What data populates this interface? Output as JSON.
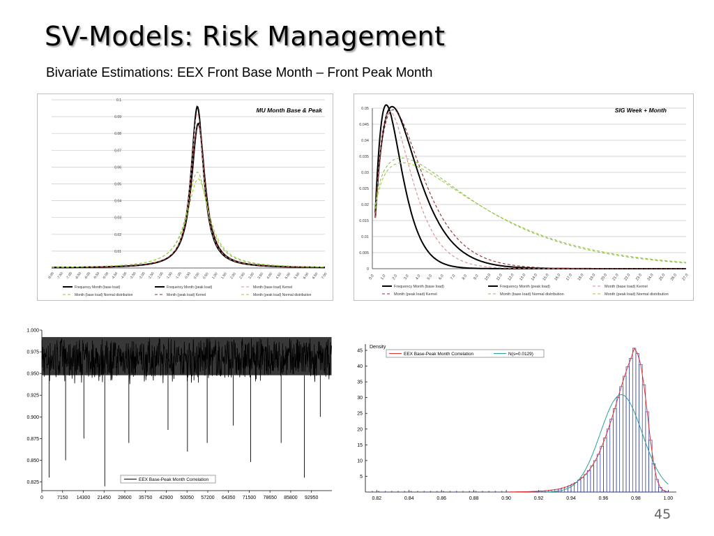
{
  "slide": {
    "title": "SV-Models: Risk Management",
    "subtitle": "Bivariate Estimations: EEX Front Base Month – Front Peak Month",
    "page_number": "45"
  },
  "chart_data": [
    {
      "type": "line",
      "title": "MU Month Base & Peak",
      "x": [
        -8.0,
        -7.5,
        -7.0,
        -6.5,
        -6.0,
        -5.5,
        -5.0,
        -4.5,
        -4.0,
        -3.5,
        -3.0,
        -2.5,
        -2.0,
        -1.5,
        -1.0,
        -0.5,
        0.0,
        0.5,
        1.0,
        1.5,
        2.0,
        2.5,
        3.0,
        3.5,
        4.0,
        4.5,
        5.0,
        5.5,
        6.0,
        6.5,
        7.0
      ],
      "x_tick_labels": [
        "-8.00",
        "-7.50",
        "-7.00",
        "-6.50",
        "-6.00",
        "-5.50",
        "-5.00",
        "-4.50",
        "-4.00",
        "-3.50",
        "-3.00",
        "-2.50",
        "-2.00",
        "-1.50",
        "-1.00",
        "-0.50",
        "0.00",
        "0.50",
        "1.00",
        "1.50",
        "2.00",
        "2.50",
        "3.00",
        "3.50",
        "4.00",
        "4.50",
        "5.00",
        "5.50",
        "6.00",
        "6.50",
        "7.00"
      ],
      "y_ticks": [
        "0.01",
        "0.02",
        "0.03",
        "0.04",
        "0.05",
        "0.06",
        "0.07",
        "0.08",
        "0.09",
        "0.1"
      ],
      "ylim": [
        0,
        0.1
      ],
      "xlim": [
        -8.0,
        7.0
      ],
      "grid": true,
      "legend_position": "bottom",
      "series": [
        {
          "name": "Frequency Month (base load)",
          "style": "solid-thick",
          "color": "#000000",
          "peak_x": 0.0,
          "peak_y": 0.096,
          "width": 0.42
        },
        {
          "name": "Frequency Month (peak load)",
          "style": "solid-thick",
          "color": "#000000",
          "peak_x": 0.05,
          "peak_y": 0.086,
          "width": 0.46
        },
        {
          "name": "Month (base load) Kernel",
          "style": "dash",
          "color": "#d98a8a",
          "peak_x": 0.0,
          "peak_y": 0.092,
          "width": 0.44
        },
        {
          "name": "Month (base load) Normal distribution",
          "style": "dash",
          "color": "#8fbf5a",
          "peak_x": 0.0,
          "peak_y": 0.057,
          "width": 0.7
        },
        {
          "name": "Month (peak load) Kernel",
          "style": "dash",
          "color": "#8b2b2b",
          "peak_x": 0.05,
          "peak_y": 0.085,
          "width": 0.47
        },
        {
          "name": "Month (peak load) Normal distribution",
          "style": "dash",
          "color": "#9acd32",
          "peak_x": 0.05,
          "peak_y": 0.053,
          "width": 0.75
        }
      ]
    },
    {
      "type": "line",
      "title": "SIG Week + Month",
      "x": [
        0.0,
        1.0,
        2.0,
        3.0,
        4.0,
        5.0,
        6.0,
        7.0,
        8.0,
        9.0,
        10.0,
        11.0,
        12.0,
        13.0,
        14.0,
        15.0,
        16.0,
        17.0,
        18.0,
        19.0,
        20.0,
        21.0,
        22.0,
        23.0,
        24.0,
        25.0,
        26.0,
        27.0
      ],
      "x_tick_labels": [
        "0.0",
        "1.0",
        "2.0",
        "3.0",
        "4.0",
        "5.0",
        "6.0",
        "7.0",
        "8.0",
        "9.0",
        "10.0",
        "11.0",
        "12.0",
        "13.0",
        "14.0",
        "15.0",
        "16.0",
        "17.0",
        "18.0",
        "19.0",
        "20.0",
        "21.0",
        "22.0",
        "23.0",
        "24.0",
        "25.0",
        "26.0",
        "27.0"
      ],
      "y_ticks": [
        "0",
        "0.005",
        "0.01",
        "0.015",
        "0.02",
        "0.025",
        "0.03",
        "0.035",
        "0.04",
        "0.045",
        "0.05"
      ],
      "ylim": [
        0,
        0.05
      ],
      "xlim": [
        0,
        27
      ],
      "grid": true,
      "legend_position": "bottom",
      "series": [
        {
          "name": "Frequency Month (base load)",
          "style": "solid-thick",
          "color": "#000000",
          "mode": 1.2,
          "peak_y": 0.051,
          "k": 2.4
        },
        {
          "name": "Frequency Month (peak load)",
          "style": "solid-thick",
          "color": "#000000",
          "mode": 1.7,
          "peak_y": 0.0505,
          "k": 2.1
        },
        {
          "name": "Month (base load) Kernel",
          "style": "dash",
          "color": "#d98a8a",
          "mode": 1.5,
          "peak_y": 0.049,
          "k": 2.2
        },
        {
          "name": "Month (peak load) Kernel",
          "style": "dash",
          "color": "#8b2b2b",
          "mode": 1.8,
          "peak_y": 0.0495,
          "k": 2.0
        },
        {
          "name": "Month (base load) Normal distribution",
          "style": "dash",
          "color": "#8fbf5a",
          "mode": 2.5,
          "peak_y": 0.0345,
          "k": 1.4
        },
        {
          "name": "Month (peak load) Normal distribution",
          "style": "dash",
          "color": "#9acd32",
          "mode": 2.6,
          "peak_y": 0.033,
          "k": 1.4
        }
      ]
    },
    {
      "type": "line",
      "title": "",
      "x_tick_labels": [
        "0",
        "7150",
        "14300",
        "21450",
        "28600",
        "35750",
        "42900",
        "50050",
        "57200",
        "64350",
        "71500",
        "78650",
        "85800",
        "92950"
      ],
      "x_ticks": [
        0,
        7150,
        14300,
        21450,
        28600,
        35750,
        42900,
        50050,
        57200,
        64350,
        71500,
        78650,
        85800,
        92950
      ],
      "y_tick_labels": [
        "0.825",
        "0.850",
        "0.875",
        "0.900",
        "0.925",
        "0.950",
        "0.975",
        "1.000"
      ],
      "y_ticks": [
        0.825,
        0.85,
        0.875,
        0.9,
        0.925,
        0.95,
        0.975,
        1.0
      ],
      "xlim": [
        0,
        100000
      ],
      "ylim": [
        0.815,
        1.0
      ],
      "band_low": 0.948,
      "band_high": 0.992,
      "spikes": [
        [
          2500,
          0.83
        ],
        [
          8200,
          0.85
        ],
        [
          14500,
          0.875
        ],
        [
          21700,
          0.82
        ],
        [
          30000,
          0.87
        ],
        [
          43500,
          0.885
        ],
        [
          50200,
          0.86
        ],
        [
          57000,
          0.87
        ],
        [
          66000,
          0.89
        ],
        [
          72000,
          0.848
        ],
        [
          82500,
          0.87
        ],
        [
          90500,
          0.83
        ],
        [
          96000,
          0.9
        ]
      ],
      "grid": false,
      "legend_position": "bottom-left",
      "series": [
        {
          "name": "EEX Base-Peak Month Correlation",
          "color": "#000000"
        }
      ]
    },
    {
      "type": "bar",
      "title": "",
      "ylabel": "Density",
      "x_tick_labels": [
        "0.82",
        "0.84",
        "0.86",
        "0.88",
        "0.90",
        "0.92",
        "0.94",
        "0.96",
        "0.98",
        "1.00"
      ],
      "x_ticks": [
        0.82,
        0.84,
        0.86,
        0.88,
        0.9,
        0.92,
        0.94,
        0.96,
        0.98,
        1.0
      ],
      "y_tick_labels": [
        "5",
        "10",
        "15",
        "20",
        "25",
        "30",
        "35",
        "40",
        "45"
      ],
      "y_ticks": [
        5,
        10,
        15,
        20,
        25,
        30,
        35,
        40,
        45
      ],
      "xlim": [
        0.813,
        1.005
      ],
      "ylim": [
        0,
        47
      ],
      "hist_bins": [
        [
          0.9,
          0.02
        ],
        [
          0.902,
          0.05
        ],
        [
          0.904,
          0.05
        ],
        [
          0.906,
          0.08
        ],
        [
          0.908,
          0.08
        ],
        [
          0.91,
          0.1
        ],
        [
          0.912,
          0.12
        ],
        [
          0.914,
          0.15
        ],
        [
          0.916,
          0.2
        ],
        [
          0.918,
          0.25
        ],
        [
          0.92,
          0.3
        ],
        [
          0.922,
          0.35
        ],
        [
          0.924,
          0.45
        ],
        [
          0.926,
          0.55
        ],
        [
          0.928,
          0.7
        ],
        [
          0.93,
          0.85
        ],
        [
          0.932,
          1.0
        ],
        [
          0.934,
          1.3
        ],
        [
          0.936,
          1.6
        ],
        [
          0.938,
          2.0
        ],
        [
          0.94,
          2.5
        ],
        [
          0.942,
          3.0
        ],
        [
          0.944,
          3.8
        ],
        [
          0.946,
          4.6
        ],
        [
          0.948,
          5.6
        ],
        [
          0.95,
          6.8
        ],
        [
          0.952,
          8.3
        ],
        [
          0.954,
          10.0
        ],
        [
          0.956,
          12.0
        ],
        [
          0.958,
          14.5
        ],
        [
          0.96,
          17.2
        ],
        [
          0.962,
          20.0
        ],
        [
          0.964,
          23.2
        ],
        [
          0.966,
          26.5
        ],
        [
          0.968,
          30.0
        ],
        [
          0.97,
          33.5
        ],
        [
          0.972,
          36.8
        ],
        [
          0.974,
          39.8
        ],
        [
          0.976,
          42.5
        ],
        [
          0.978,
          45.7
        ],
        [
          0.98,
          44.0
        ],
        [
          0.982,
          40.5
        ],
        [
          0.984,
          34.0
        ],
        [
          0.986,
          25.5
        ],
        [
          0.988,
          16.5
        ],
        [
          0.99,
          9.0
        ],
        [
          0.992,
          4.0
        ],
        [
          0.994,
          1.5
        ],
        [
          0.996,
          0.5
        ],
        [
          0.998,
          0.1
        ]
      ],
      "normal": {
        "mean": 0.971,
        "sd": 0.0129
      },
      "grid": false,
      "legend_position": "top",
      "series": [
        {
          "name": "EEX Base-Peak Month Correlation",
          "color": "#e03030"
        },
        {
          "name": "N(s=0.0129)",
          "color": "#2aa198"
        }
      ]
    }
  ]
}
